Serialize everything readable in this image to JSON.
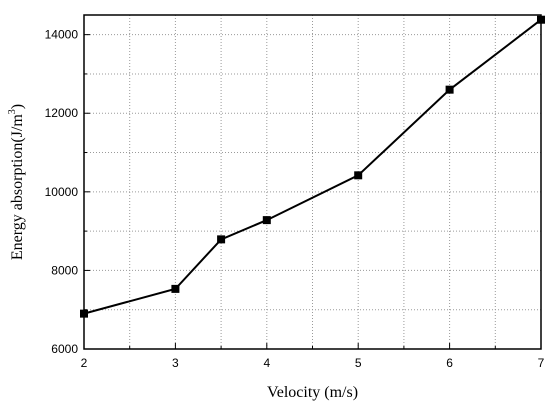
{
  "chart_data": {
    "type": "line",
    "xlabel": "Velocity (m/s)",
    "ylabel": {
      "main": "Energy absorption(J/m",
      "sup": "3",
      "close": ")"
    },
    "xlim": [
      2,
      7
    ],
    "ylim": [
      6000,
      14500
    ],
    "x_ticks": [
      "2",
      "3",
      "4",
      "5",
      "6",
      "7"
    ],
    "y_ticks": [
      "6000",
      "8000",
      "10000",
      "12000",
      "14000"
    ],
    "grid": true,
    "series": [
      {
        "x": [
          2,
          3,
          3.5,
          4,
          5,
          6,
          7
        ],
        "y": [
          6900,
          7530,
          8790,
          9280,
          10420,
          12600,
          14380
        ]
      }
    ]
  }
}
